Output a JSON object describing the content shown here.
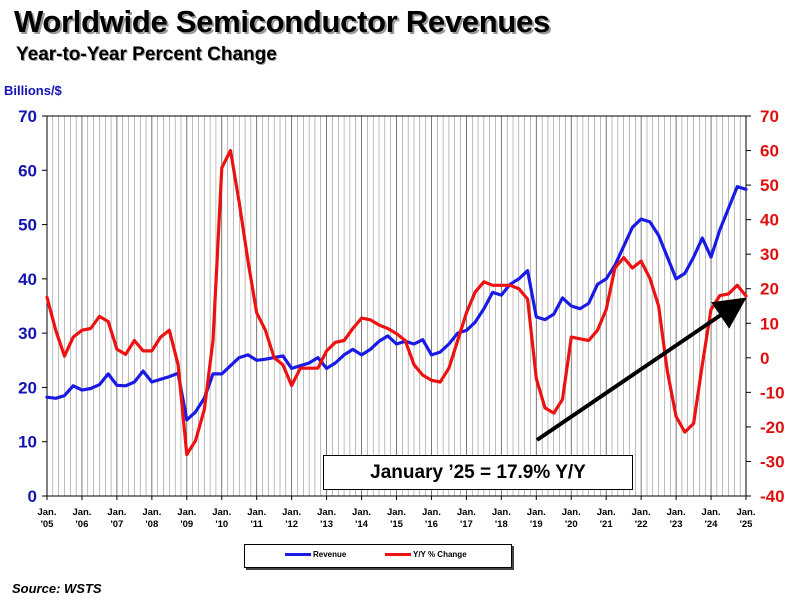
{
  "header": {
    "title": "Worldwide Semiconductor Revenues",
    "subtitle": "Year-to-Year Percent Change"
  },
  "source": "Source: WSTS",
  "chart_data": {
    "type": "line",
    "title": "Worldwide Semiconductor Revenues",
    "subtitle": "Year-to-Year Percent Change",
    "ylabel_left": "Billions/$",
    "ylabel_right": "",
    "ylim_left": [
      0,
      70
    ],
    "ylim_right": [
      -40,
      70
    ],
    "yticks_left": [
      "0",
      "10",
      "20",
      "30",
      "40",
      "50",
      "60",
      "70"
    ],
    "yticks_right": [
      "-40",
      "-30",
      "-20",
      "-10",
      "0",
      "10",
      "20",
      "30",
      "40",
      "50",
      "60",
      "70"
    ],
    "x_tick_labels": [
      [
        "Jan.",
        "'05"
      ],
      [
        "Jan.",
        "'06"
      ],
      [
        "Jan.",
        "'07"
      ],
      [
        "Jan.",
        "'08"
      ],
      [
        "Jan.",
        "'09"
      ],
      [
        "Jan.",
        "'10"
      ],
      [
        "Jan.",
        "'11"
      ],
      [
        "Jan.",
        "'12"
      ],
      [
        "Jan.",
        "'13"
      ],
      [
        "Jan.",
        "'14"
      ],
      [
        "Jan.",
        "'15"
      ],
      [
        "Jan.",
        "'16"
      ],
      [
        "Jan.",
        "'17"
      ],
      [
        "Jan.",
        "'18"
      ],
      [
        "Jan.",
        "'19"
      ],
      [
        "Jan.",
        "'20"
      ],
      [
        "Jan.",
        "'21"
      ],
      [
        "Jan.",
        "'22"
      ],
      [
        "Jan.",
        "'23"
      ],
      [
        "Jan.",
        "'24"
      ],
      [
        "Jan.",
        "'25"
      ]
    ],
    "x_range": [
      "Jan 2005",
      "Jan 2025"
    ],
    "grid": "vertical monthly gridlines",
    "legend_position": "bottom-center",
    "annotation": "January ’25 = 17.9% Y/Y",
    "series": [
      {
        "name": "Revenue",
        "axis": "left",
        "color": "#1a1ae6",
        "points": [
          [
            "2005-01",
            18.2
          ],
          [
            "2005-04",
            18.0
          ],
          [
            "2005-07",
            18.5
          ],
          [
            "2005-10",
            20.3
          ],
          [
            "2006-01",
            19.5
          ],
          [
            "2006-04",
            19.8
          ],
          [
            "2006-07",
            20.5
          ],
          [
            "2006-10",
            22.5
          ],
          [
            "2007-01",
            20.4
          ],
          [
            "2007-04",
            20.3
          ],
          [
            "2007-07",
            21.0
          ],
          [
            "2007-10",
            23.0
          ],
          [
            "2008-01",
            21.0
          ],
          [
            "2008-04",
            21.5
          ],
          [
            "2008-07",
            22.0
          ],
          [
            "2008-10",
            22.6
          ],
          [
            "2009-01",
            14.0
          ],
          [
            "2009-04",
            15.5
          ],
          [
            "2009-07",
            18.0
          ],
          [
            "2009-10",
            22.5
          ],
          [
            "2010-01",
            22.5
          ],
          [
            "2010-04",
            24.0
          ],
          [
            "2010-07",
            25.5
          ],
          [
            "2010-10",
            26.0
          ],
          [
            "2011-01",
            25.0
          ],
          [
            "2011-04",
            25.2
          ],
          [
            "2011-07",
            25.5
          ],
          [
            "2011-10",
            25.8
          ],
          [
            "2012-01",
            23.5
          ],
          [
            "2012-04",
            24.0
          ],
          [
            "2012-07",
            24.5
          ],
          [
            "2012-10",
            25.5
          ],
          [
            "2013-01",
            23.5
          ],
          [
            "2013-04",
            24.5
          ],
          [
            "2013-07",
            26.0
          ],
          [
            "2013-10",
            27.0
          ],
          [
            "2014-01",
            26.0
          ],
          [
            "2014-04",
            27.0
          ],
          [
            "2014-07",
            28.5
          ],
          [
            "2014-10",
            29.5
          ],
          [
            "2015-01",
            28.0
          ],
          [
            "2015-04",
            28.5
          ],
          [
            "2015-07",
            28.0
          ],
          [
            "2015-10",
            28.8
          ],
          [
            "2016-01",
            26.0
          ],
          [
            "2016-04",
            26.5
          ],
          [
            "2016-07",
            28.0
          ],
          [
            "2016-10",
            30.0
          ],
          [
            "2017-01",
            30.5
          ],
          [
            "2017-04",
            32.0
          ],
          [
            "2017-07",
            34.5
          ],
          [
            "2017-10",
            37.5
          ],
          [
            "2018-01",
            37.0
          ],
          [
            "2018-04",
            39.0
          ],
          [
            "2018-07",
            40.0
          ],
          [
            "2018-10",
            41.5
          ],
          [
            "2019-01",
            33.0
          ],
          [
            "2019-04",
            32.5
          ],
          [
            "2019-07",
            33.5
          ],
          [
            "2019-10",
            36.5
          ],
          [
            "2020-01",
            35.0
          ],
          [
            "2020-04",
            34.5
          ],
          [
            "2020-07",
            35.5
          ],
          [
            "2020-10",
            39.0
          ],
          [
            "2021-01",
            40.0
          ],
          [
            "2021-04",
            42.5
          ],
          [
            "2021-07",
            46.0
          ],
          [
            "2021-10",
            49.5
          ],
          [
            "2022-01",
            51.0
          ],
          [
            "2022-04",
            50.5
          ],
          [
            "2022-07",
            48.0
          ],
          [
            "2022-10",
            44.0
          ],
          [
            "2023-01",
            40.0
          ],
          [
            "2023-04",
            41.0
          ],
          [
            "2023-07",
            44.0
          ],
          [
            "2023-10",
            47.5
          ],
          [
            "2024-01",
            44.0
          ],
          [
            "2024-04",
            49.0
          ],
          [
            "2024-07",
            53.0
          ],
          [
            "2024-10",
            57.0
          ],
          [
            "2025-01",
            56.5
          ]
        ]
      },
      {
        "name": "Y/Y % Change",
        "axis": "right",
        "color": "#ee1111",
        "points": [
          [
            "2005-01",
            17.5
          ],
          [
            "2005-04",
            8.0
          ],
          [
            "2005-07",
            0.5
          ],
          [
            "2005-10",
            6.0
          ],
          [
            "2006-01",
            8.0
          ],
          [
            "2006-04",
            8.5
          ],
          [
            "2006-07",
            12.0
          ],
          [
            "2006-10",
            10.5
          ],
          [
            "2007-01",
            2.5
          ],
          [
            "2007-04",
            1.0
          ],
          [
            "2007-07",
            5.0
          ],
          [
            "2007-10",
            2.0
          ],
          [
            "2008-01",
            2.0
          ],
          [
            "2008-04",
            6.0
          ],
          [
            "2008-07",
            8.0
          ],
          [
            "2008-10",
            -2.0
          ],
          [
            "2009-01",
            -28.0
          ],
          [
            "2009-04",
            -24.0
          ],
          [
            "2009-07",
            -15.0
          ],
          [
            "2009-10",
            5.0
          ],
          [
            "2010-01",
            55.0
          ],
          [
            "2010-04",
            60.0
          ],
          [
            "2010-07",
            45.0
          ],
          [
            "2010-10",
            28.0
          ],
          [
            "2011-01",
            13.0
          ],
          [
            "2011-04",
            8.0
          ],
          [
            "2011-07",
            0.0
          ],
          [
            "2011-10",
            -2.0
          ],
          [
            "2012-01",
            -8.0
          ],
          [
            "2012-04",
            -3.0
          ],
          [
            "2012-07",
            -3.0
          ],
          [
            "2012-10",
            -3.0
          ],
          [
            "2013-01",
            2.0
          ],
          [
            "2013-04",
            4.5
          ],
          [
            "2013-07",
            5.0
          ],
          [
            "2013-10",
            8.5
          ],
          [
            "2014-01",
            11.5
          ],
          [
            "2014-04",
            11.0
          ],
          [
            "2014-07",
            9.5
          ],
          [
            "2014-10",
            8.5
          ],
          [
            "2015-01",
            7.0
          ],
          [
            "2015-04",
            5.0
          ],
          [
            "2015-07",
            -2.0
          ],
          [
            "2015-10",
            -5.0
          ],
          [
            "2016-01",
            -6.5
          ],
          [
            "2016-04",
            -7.0
          ],
          [
            "2016-07",
            -3.0
          ],
          [
            "2016-10",
            5.0
          ],
          [
            "2017-01",
            13.0
          ],
          [
            "2017-04",
            19.0
          ],
          [
            "2017-07",
            22.0
          ],
          [
            "2017-10",
            21.0
          ],
          [
            "2018-01",
            21.0
          ],
          [
            "2018-04",
            21.0
          ],
          [
            "2018-07",
            20.0
          ],
          [
            "2018-10",
            17.0
          ],
          [
            "2019-01",
            -6.0
          ],
          [
            "2019-04",
            -14.5
          ],
          [
            "2019-07",
            -16.0
          ],
          [
            "2019-10",
            -12.0
          ],
          [
            "2020-01",
            6.0
          ],
          [
            "2020-04",
            5.5
          ],
          [
            "2020-07",
            5.0
          ],
          [
            "2020-10",
            8.0
          ],
          [
            "2021-01",
            14.0
          ],
          [
            "2021-04",
            26.0
          ],
          [
            "2021-07",
            29.0
          ],
          [
            "2021-10",
            26.0
          ],
          [
            "2022-01",
            28.0
          ],
          [
            "2022-04",
            23.0
          ],
          [
            "2022-07",
            15.0
          ],
          [
            "2022-10",
            -4.0
          ],
          [
            "2023-01",
            -17.0
          ],
          [
            "2023-04",
            -21.5
          ],
          [
            "2023-07",
            -19.0
          ],
          [
            "2023-10",
            -2.0
          ],
          [
            "2024-01",
            14.0
          ],
          [
            "2024-04",
            18.0
          ],
          [
            "2024-07",
            18.5
          ],
          [
            "2024-10",
            21.0
          ],
          [
            "2025-01",
            17.9
          ]
        ]
      }
    ]
  }
}
